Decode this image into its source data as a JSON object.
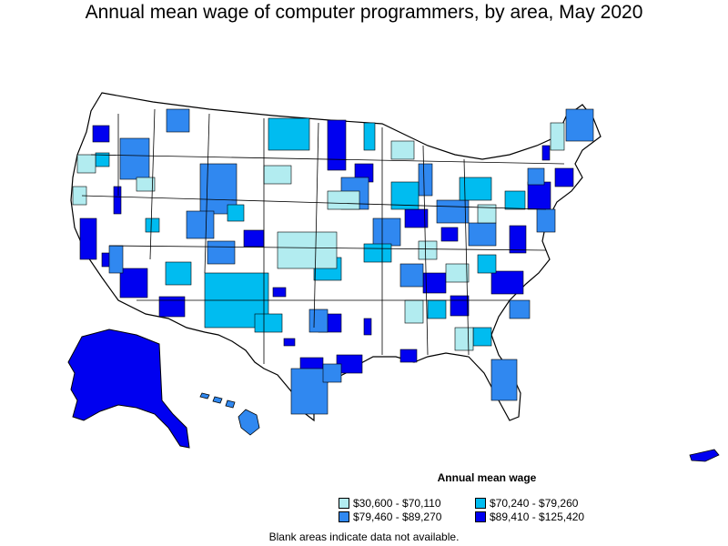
{
  "title": "Annual mean wage of computer programmers, by area, May 2020",
  "legend": {
    "title": "Annual mean wage",
    "items": [
      {
        "label": "$30,600 - $70,110",
        "color": "#b2ecf0"
      },
      {
        "label": "$70,240 - $79,260",
        "color": "#00bcf0"
      },
      {
        "label": "$79,460 - $89,270",
        "color": "#3088f0"
      },
      {
        "label": "$89,410 - $125,420",
        "color": "#0000f0"
      }
    ]
  },
  "note": "Blank areas indicate data not available.",
  "colors": {
    "tier1": "#b2ecf0",
    "tier2": "#00bcf0",
    "tier3": "#3088f0",
    "tier4": "#0000f0",
    "outline": "#000000",
    "blank": "#ffffff"
  }
}
